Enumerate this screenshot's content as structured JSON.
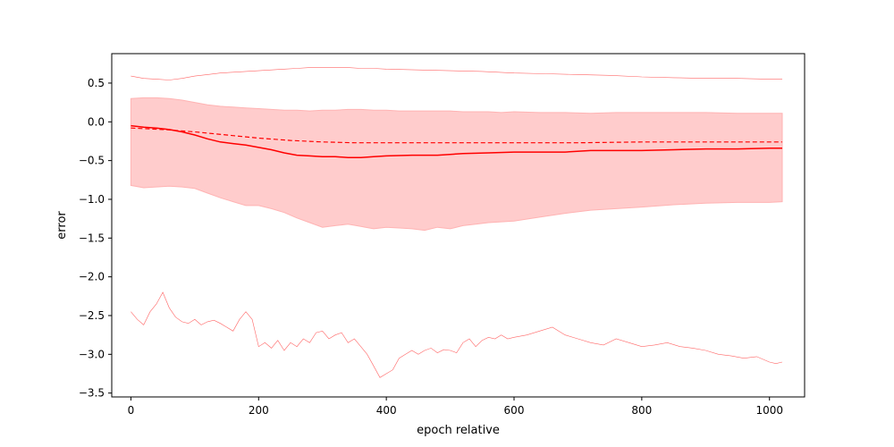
{
  "chart_data": {
    "type": "line",
    "title": "",
    "xlabel": "epoch relative",
    "ylabel": "error",
    "xlim": [
      -30,
      1055
    ],
    "ylim": [
      -3.55,
      0.88
    ],
    "xticks": [
      0,
      200,
      400,
      600,
      800,
      1000
    ],
    "xtick_labels": [
      "0",
      "200",
      "400",
      "600",
      "800",
      "1000"
    ],
    "yticks": [
      -3.5,
      -3.0,
      -2.5,
      -2.0,
      -1.5,
      -1.0,
      -0.5,
      0.0,
      0.5
    ],
    "ytick_labels": [
      "−3.5",
      "−3.0",
      "−2.5",
      "−2.0",
      "−1.5",
      "−1.0",
      "−0.5",
      "0.0",
      "0.5"
    ],
    "grid": false,
    "legend": "none",
    "colors": {
      "main": "#ff0000",
      "band_fill": "#ffcccc",
      "band_edge": "#ffb3b3",
      "extreme": "#ff6666"
    },
    "band": {
      "x": [
        0,
        20,
        40,
        60,
        80,
        100,
        120,
        140,
        160,
        180,
        200,
        220,
        240,
        260,
        280,
        300,
        320,
        340,
        360,
        380,
        400,
        420,
        440,
        460,
        480,
        500,
        520,
        540,
        560,
        580,
        600,
        640,
        680,
        720,
        760,
        800,
        850,
        900,
        950,
        1000,
        1020
      ],
      "upper": [
        0.3,
        0.31,
        0.31,
        0.3,
        0.28,
        0.25,
        0.22,
        0.2,
        0.19,
        0.18,
        0.17,
        0.16,
        0.15,
        0.15,
        0.14,
        0.15,
        0.15,
        0.16,
        0.16,
        0.15,
        0.15,
        0.14,
        0.14,
        0.14,
        0.14,
        0.14,
        0.13,
        0.13,
        0.13,
        0.12,
        0.13,
        0.12,
        0.12,
        0.11,
        0.12,
        0.12,
        0.12,
        0.12,
        0.11,
        0.11,
        0.11
      ],
      "lower": [
        -0.82,
        -0.85,
        -0.84,
        -0.83,
        -0.84,
        -0.86,
        -0.92,
        -0.98,
        -1.03,
        -1.08,
        -1.08,
        -1.12,
        -1.17,
        -1.24,
        -1.3,
        -1.36,
        -1.34,
        -1.32,
        -1.35,
        -1.38,
        -1.36,
        -1.37,
        -1.38,
        -1.4,
        -1.36,
        -1.38,
        -1.34,
        -1.32,
        -1.3,
        -1.29,
        -1.28,
        -1.23,
        -1.18,
        -1.14,
        -1.12,
        -1.1,
        -1.07,
        -1.05,
        -1.04,
        -1.04,
        -1.03
      ]
    },
    "series": [
      {
        "style": "solid",
        "x": [
          0,
          20,
          40,
          60,
          80,
          100,
          120,
          140,
          160,
          180,
          200,
          220,
          240,
          260,
          280,
          300,
          320,
          340,
          360,
          380,
          400,
          440,
          480,
          520,
          560,
          600,
          640,
          680,
          720,
          760,
          800,
          850,
          900,
          950,
          1000,
          1020
        ],
        "y": [
          -0.05,
          -0.07,
          -0.08,
          -0.1,
          -0.13,
          -0.17,
          -0.22,
          -0.26,
          -0.28,
          -0.3,
          -0.33,
          -0.36,
          -0.4,
          -0.43,
          -0.44,
          -0.45,
          -0.45,
          -0.46,
          -0.46,
          -0.45,
          -0.44,
          -0.43,
          -0.43,
          -0.41,
          -0.4,
          -0.39,
          -0.39,
          -0.39,
          -0.37,
          -0.37,
          -0.37,
          -0.36,
          -0.35,
          -0.35,
          -0.34,
          -0.34
        ]
      },
      {
        "style": "dashed",
        "x": [
          0,
          50,
          100,
          150,
          200,
          250,
          300,
          350,
          400,
          450,
          500,
          550,
          600,
          700,
          800,
          900,
          1000,
          1020
        ],
        "y": [
          -0.08,
          -0.1,
          -0.13,
          -0.17,
          -0.21,
          -0.24,
          -0.26,
          -0.27,
          -0.27,
          -0.27,
          -0.27,
          -0.27,
          -0.27,
          -0.27,
          -0.26,
          -0.26,
          -0.26,
          -0.26
        ]
      },
      {
        "style": "thin-upper",
        "x": [
          0,
          20,
          40,
          60,
          80,
          100,
          120,
          140,
          160,
          180,
          200,
          220,
          240,
          260,
          280,
          300,
          320,
          340,
          360,
          380,
          400,
          450,
          500,
          550,
          600,
          650,
          700,
          750,
          800,
          850,
          900,
          950,
          1000,
          1020
        ],
        "y": [
          0.59,
          0.56,
          0.55,
          0.54,
          0.56,
          0.59,
          0.61,
          0.63,
          0.64,
          0.65,
          0.66,
          0.67,
          0.68,
          0.69,
          0.7,
          0.7,
          0.7,
          0.7,
          0.69,
          0.69,
          0.68,
          0.67,
          0.66,
          0.65,
          0.63,
          0.62,
          0.61,
          0.6,
          0.58,
          0.57,
          0.56,
          0.56,
          0.55,
          0.55
        ]
      },
      {
        "style": "thin-lower",
        "x": [
          0,
          10,
          20,
          30,
          40,
          50,
          60,
          70,
          80,
          90,
          100,
          110,
          120,
          130,
          140,
          150,
          160,
          170,
          180,
          190,
          200,
          210,
          220,
          230,
          240,
          250,
          260,
          270,
          280,
          290,
          300,
          310,
          320,
          330,
          340,
          350,
          360,
          370,
          380,
          390,
          400,
          410,
          420,
          430,
          440,
          450,
          460,
          470,
          480,
          490,
          500,
          510,
          520,
          530,
          540,
          550,
          560,
          570,
          580,
          590,
          600,
          620,
          640,
          660,
          680,
          700,
          720,
          740,
          760,
          780,
          800,
          820,
          840,
          860,
          880,
          900,
          920,
          940,
          960,
          980,
          1000,
          1010,
          1020
        ],
        "y": [
          -2.45,
          -2.55,
          -2.62,
          -2.45,
          -2.35,
          -2.2,
          -2.4,
          -2.52,
          -2.58,
          -2.6,
          -2.55,
          -2.62,
          -2.58,
          -2.56,
          -2.6,
          -2.65,
          -2.7,
          -2.55,
          -2.45,
          -2.55,
          -2.9,
          -2.85,
          -2.92,
          -2.82,
          -2.95,
          -2.85,
          -2.9,
          -2.8,
          -2.85,
          -2.72,
          -2.7,
          -2.8,
          -2.75,
          -2.72,
          -2.85,
          -2.8,
          -2.9,
          -3.0,
          -3.15,
          -3.3,
          -3.25,
          -3.2,
          -3.05,
          -3.0,
          -2.95,
          -3.0,
          -2.95,
          -2.92,
          -2.98,
          -2.94,
          -2.95,
          -2.98,
          -2.85,
          -2.8,
          -2.9,
          -2.82,
          -2.78,
          -2.8,
          -2.75,
          -2.8,
          -2.78,
          -2.75,
          -2.7,
          -2.65,
          -2.75,
          -2.8,
          -2.85,
          -2.88,
          -2.8,
          -2.85,
          -2.9,
          -2.88,
          -2.85,
          -2.9,
          -2.92,
          -2.95,
          -3.0,
          -3.02,
          -3.05,
          -3.03,
          -3.1,
          -3.12,
          -3.1
        ]
      }
    ]
  }
}
